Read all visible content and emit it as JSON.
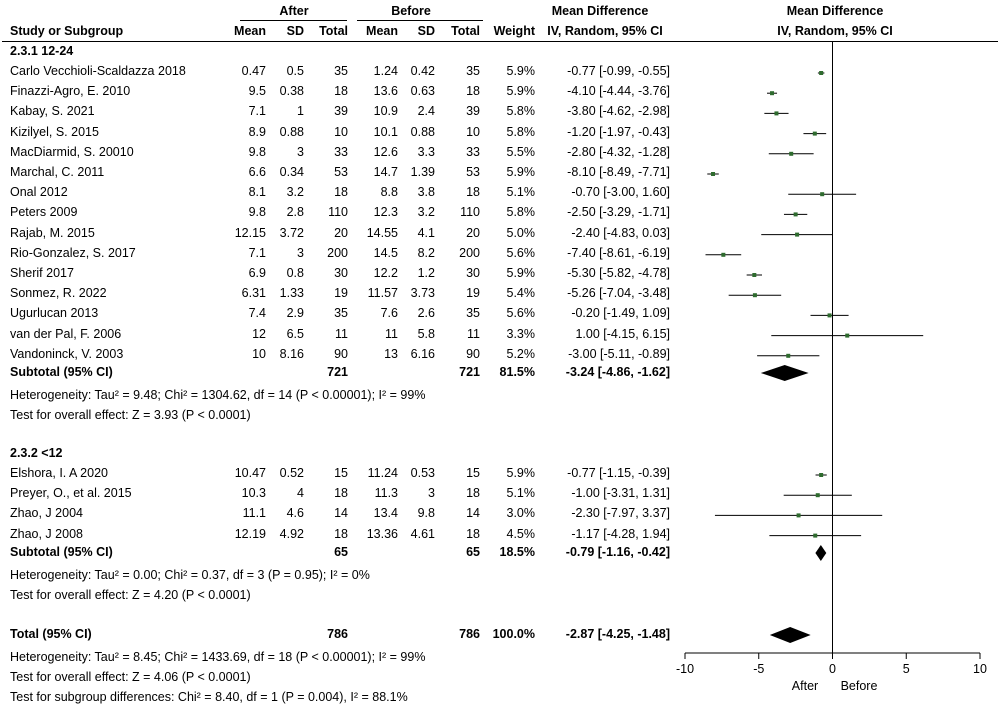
{
  "header": {
    "group_after": "After",
    "group_before": "Before",
    "col_study": "Study or Subgroup",
    "col_mean": "Mean",
    "col_sd": "SD",
    "col_total": "Total",
    "col_weight": "Weight",
    "md_title": "Mean Difference",
    "md_subtitle": "IV, Random, 95% CI",
    "plot_title": "Mean Difference",
    "plot_subtitle": "IV, Random, 95% CI"
  },
  "subgroups": [
    {
      "title": "2.3.1 12-24",
      "studies": [
        {
          "name": "Carlo Vecchioli-Scaldazza 2018",
          "after_mean": "0.47",
          "after_sd": "0.5",
          "after_total": "35",
          "before_mean": "1.24",
          "before_sd": "0.42",
          "before_total": "35",
          "weight": "5.9%",
          "ci_text": "-0.77 [-0.99, -0.55]"
        },
        {
          "name": "Finazzi-Agro, E. 2010",
          "after_mean": "9.5",
          "after_sd": "0.38",
          "after_total": "18",
          "before_mean": "13.6",
          "before_sd": "0.63",
          "before_total": "18",
          "weight": "5.9%",
          "ci_text": "-4.10 [-4.44, -3.76]"
        },
        {
          "name": "Kabay, S. 2021",
          "after_mean": "7.1",
          "after_sd": "1",
          "after_total": "39",
          "before_mean": "10.9",
          "before_sd": "2.4",
          "before_total": "39",
          "weight": "5.8%",
          "ci_text": "-3.80 [-4.62, -2.98]"
        },
        {
          "name": "Kizilyel, S. 2015",
          "after_mean": "8.9",
          "after_sd": "0.88",
          "after_total": "10",
          "before_mean": "10.1",
          "before_sd": "0.88",
          "before_total": "10",
          "weight": "5.8%",
          "ci_text": "-1.20 [-1.97, -0.43]"
        },
        {
          "name": "MacDiarmid, S. 20010",
          "after_mean": "9.8",
          "after_sd": "3",
          "after_total": "33",
          "before_mean": "12.6",
          "before_sd": "3.3",
          "before_total": "33",
          "weight": "5.5%",
          "ci_text": "-2.80 [-4.32, -1.28]"
        },
        {
          "name": "Marchal, C. 2011",
          "after_mean": "6.6",
          "after_sd": "0.34",
          "after_total": "53",
          "before_mean": "14.7",
          "before_sd": "1.39",
          "before_total": "53",
          "weight": "5.9%",
          "ci_text": "-8.10 [-8.49, -7.71]"
        },
        {
          "name": "Onal 2012",
          "after_mean": "8.1",
          "after_sd": "3.2",
          "after_total": "18",
          "before_mean": "8.8",
          "before_sd": "3.8",
          "before_total": "18",
          "weight": "5.1%",
          "ci_text": "-0.70 [-3.00, 1.60]"
        },
        {
          "name": "Peters 2009",
          "after_mean": "9.8",
          "after_sd": "2.8",
          "after_total": "110",
          "before_mean": "12.3",
          "before_sd": "3.2",
          "before_total": "110",
          "weight": "5.8%",
          "ci_text": "-2.50 [-3.29, -1.71]"
        },
        {
          "name": "Rajab, M. 2015",
          "after_mean": "12.15",
          "after_sd": "3.72",
          "after_total": "20",
          "before_mean": "14.55",
          "before_sd": "4.1",
          "before_total": "20",
          "weight": "5.0%",
          "ci_text": "-2.40 [-4.83, 0.03]"
        },
        {
          "name": "Rio-Gonzalez, S. 2017",
          "after_mean": "7.1",
          "after_sd": "3",
          "after_total": "200",
          "before_mean": "14.5",
          "before_sd": "8.2",
          "before_total": "200",
          "weight": "5.6%",
          "ci_text": "-7.40 [-8.61, -6.19]"
        },
        {
          "name": "Sherif 2017",
          "after_mean": "6.9",
          "after_sd": "0.8",
          "after_total": "30",
          "before_mean": "12.2",
          "before_sd": "1.2",
          "before_total": "30",
          "weight": "5.9%",
          "ci_text": "-5.30 [-5.82, -4.78]"
        },
        {
          "name": "Sonmez, R. 2022",
          "after_mean": "6.31",
          "after_sd": "1.33",
          "after_total": "19",
          "before_mean": "11.57",
          "before_sd": "3.73",
          "before_total": "19",
          "weight": "5.4%",
          "ci_text": "-5.26 [-7.04, -3.48]"
        },
        {
          "name": "Ugurlucan 2013",
          "after_mean": "7.4",
          "after_sd": "2.9",
          "after_total": "35",
          "before_mean": "7.6",
          "before_sd": "2.6",
          "before_total": "35",
          "weight": "5.6%",
          "ci_text": "-0.20 [-1.49, 1.09]"
        },
        {
          "name": "van der Pal, F. 2006",
          "after_mean": "12",
          "after_sd": "6.5",
          "after_total": "11",
          "before_mean": "11",
          "before_sd": "5.8",
          "before_total": "11",
          "weight": "3.3%",
          "ci_text": "1.00 [-4.15, 6.15]"
        },
        {
          "name": "Vandoninck, V. 2003",
          "after_mean": "10",
          "after_sd": "8.16",
          "after_total": "90",
          "before_mean": "13",
          "before_sd": "6.16",
          "before_total": "90",
          "weight": "5.2%",
          "ci_text": "-3.00 [-5.11, -0.89]"
        }
      ],
      "subtotal": {
        "label": "Subtotal (95% CI)",
        "after_total": "721",
        "before_total": "721",
        "weight": "81.5%",
        "ci_text": "-3.24 [-4.86, -1.62]"
      },
      "heterogeneity": "Heterogeneity: Tau² = 9.48; Chi² = 1304.62, df = 14 (P < 0.00001); I² = 99%",
      "overall_effect": "Test for overall effect: Z = 3.93 (P < 0.0001)"
    },
    {
      "title": "2.3.2 <12",
      "studies": [
        {
          "name": "Elshora, I. A 2020",
          "after_mean": "10.47",
          "after_sd": "0.52",
          "after_total": "15",
          "before_mean": "11.24",
          "before_sd": "0.53",
          "before_total": "15",
          "weight": "5.9%",
          "ci_text": "-0.77 [-1.15, -0.39]"
        },
        {
          "name": "Preyer, O., et al. 2015",
          "after_mean": "10.3",
          "after_sd": "4",
          "after_total": "18",
          "before_mean": "11.3",
          "before_sd": "3",
          "before_total": "18",
          "weight": "5.1%",
          "ci_text": "-1.00 [-3.31, 1.31]"
        },
        {
          "name": "Zhao, J 2004",
          "after_mean": "11.1",
          "after_sd": "4.6",
          "after_total": "14",
          "before_mean": "13.4",
          "before_sd": "9.8",
          "before_total": "14",
          "weight": "3.0%",
          "ci_text": "-2.30 [-7.97, 3.37]"
        },
        {
          "name": "Zhao, J 2008",
          "after_mean": "12.19",
          "after_sd": "4.92",
          "after_total": "18",
          "before_mean": "13.36",
          "before_sd": "4.61",
          "before_total": "18",
          "weight": "4.5%",
          "ci_text": "-1.17 [-4.28, 1.94]"
        }
      ],
      "subtotal": {
        "label": "Subtotal (95% CI)",
        "after_total": "65",
        "before_total": "65",
        "weight": "18.5%",
        "ci_text": "-0.79 [-1.16, -0.42]"
      },
      "heterogeneity": "Heterogeneity: Tau² = 0.00; Chi² = 0.37, df = 3 (P = 0.95); I² = 0%",
      "overall_effect": "Test for overall effect: Z = 4.20 (P < 0.0001)"
    }
  ],
  "total": {
    "label": "Total (95% CI)",
    "after_total": "786",
    "before_total": "786",
    "weight": "100.0%",
    "ci_text": "-2.87 [-4.25, -1.48]"
  },
  "footer": {
    "heterogeneity": "Heterogeneity: Tau² = 8.45; Chi² = 1433.69, df = 18 (P < 0.00001); I² = 99%",
    "overall_effect": "Test for overall effect: Z = 4.06 (P < 0.0001)",
    "subgroup_diff": "Test for subgroup differences: Chi² = 8.40, df = 1 (P = 0.004), I² = 88.1%"
  },
  "chart_data": {
    "type": "forest",
    "x_ticks": [
      "-10",
      "-5",
      "0",
      "5",
      "10"
    ],
    "xlim": [
      -10,
      10
    ],
    "favours_left": "After",
    "favours_right": "Before",
    "colors": {
      "marker": "#2e6b2e",
      "diamond": "#000000"
    },
    "studies": [
      {
        "name": "Carlo Vecchioli-Scaldazza 2018",
        "md": -0.77,
        "lo": -0.99,
        "hi": -0.55
      },
      {
        "name": "Finazzi-Agro, E. 2010",
        "md": -4.1,
        "lo": -4.44,
        "hi": -3.76
      },
      {
        "name": "Kabay, S. 2021",
        "md": -3.8,
        "lo": -4.62,
        "hi": -2.98
      },
      {
        "name": "Kizilyel, S. 2015",
        "md": -1.2,
        "lo": -1.97,
        "hi": -0.43
      },
      {
        "name": "MacDiarmid, S. 20010",
        "md": -2.8,
        "lo": -4.32,
        "hi": -1.28
      },
      {
        "name": "Marchal, C. 2011",
        "md": -8.1,
        "lo": -8.49,
        "hi": -7.71
      },
      {
        "name": "Onal 2012",
        "md": -0.7,
        "lo": -3.0,
        "hi": 1.6
      },
      {
        "name": "Peters 2009",
        "md": -2.5,
        "lo": -3.29,
        "hi": -1.71
      },
      {
        "name": "Rajab, M. 2015",
        "md": -2.4,
        "lo": -4.83,
        "hi": 0.03
      },
      {
        "name": "Rio-Gonzalez, S. 2017",
        "md": -7.4,
        "lo": -8.61,
        "hi": -6.19
      },
      {
        "name": "Sherif 2017",
        "md": -5.3,
        "lo": -5.82,
        "hi": -4.78
      },
      {
        "name": "Sonmez, R. 2022",
        "md": -5.26,
        "lo": -7.04,
        "hi": -3.48
      },
      {
        "name": "Ugurlucan 2013",
        "md": -0.2,
        "lo": -1.49,
        "hi": 1.09
      },
      {
        "name": "van der Pal, F. 2006",
        "md": 1.0,
        "lo": -4.15,
        "hi": 6.15
      },
      {
        "name": "Vandoninck, V. 2003",
        "md": -3.0,
        "lo": -5.11,
        "hi": -0.89
      },
      {
        "name": "Elshora, I. A 2020",
        "md": -0.77,
        "lo": -1.15,
        "hi": -0.39
      },
      {
        "name": "Preyer, O., et al. 2015",
        "md": -1.0,
        "lo": -3.31,
        "hi": 1.31
      },
      {
        "name": "Zhao, J 2004",
        "md": -2.3,
        "lo": -7.97,
        "hi": 3.37
      },
      {
        "name": "Zhao, J 2008",
        "md": -1.17,
        "lo": -4.28,
        "hi": 1.94
      }
    ],
    "pooled": [
      {
        "name": "Subtotal 2.3.1 12-24",
        "md": -3.24,
        "lo": -4.86,
        "hi": -1.62
      },
      {
        "name": "Subtotal 2.3.2 <12",
        "md": -0.79,
        "lo": -1.16,
        "hi": -0.42
      },
      {
        "name": "Total",
        "md": -2.87,
        "lo": -4.25,
        "hi": -1.48
      }
    ]
  }
}
